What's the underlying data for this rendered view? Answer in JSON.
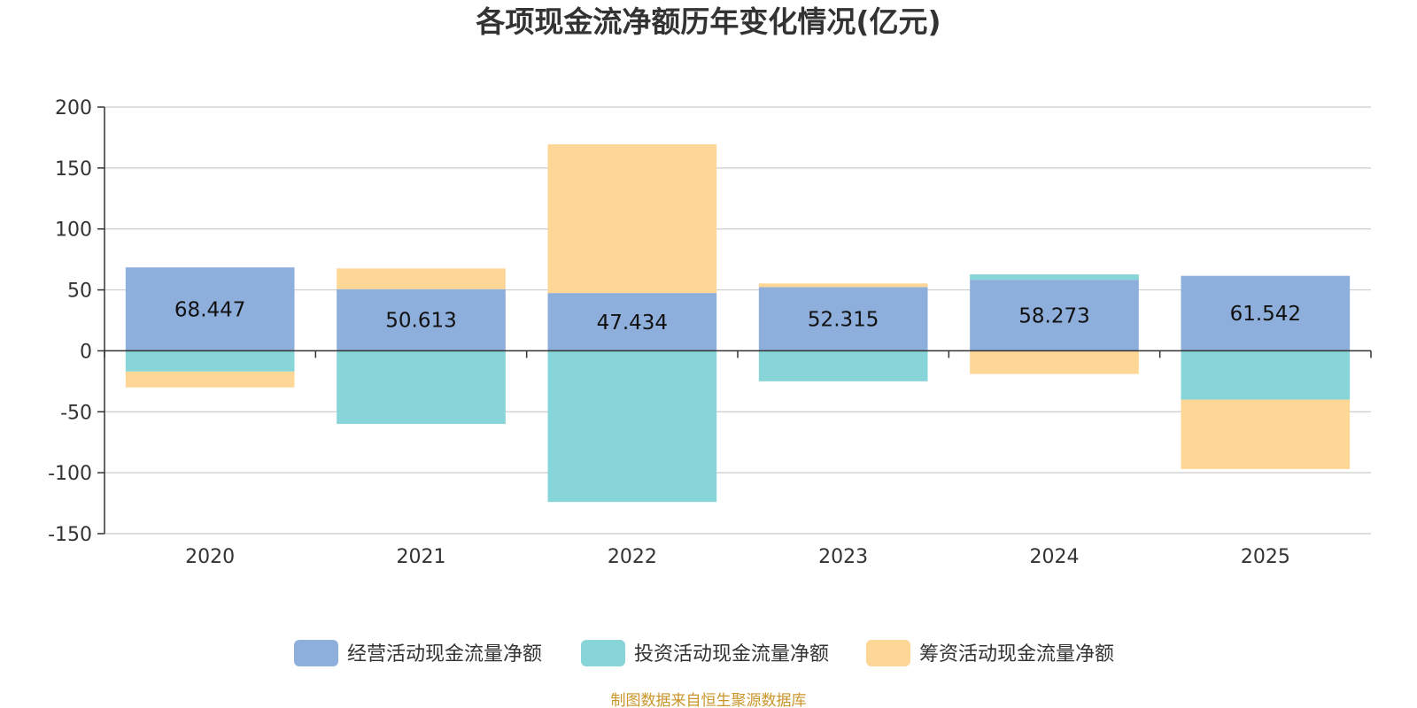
{
  "chart_data": {
    "type": "bar",
    "stacked": true,
    "title": "各项现金流净额历年变化情况(亿元)",
    "categories": [
      "2020",
      "2021",
      "2022",
      "2023",
      "2024",
      "2025"
    ],
    "ylim": [
      -150,
      200
    ],
    "yticks": [
      200,
      150,
      100,
      50,
      0,
      -50,
      -100,
      -150
    ],
    "ytick_labels": [
      "200",
      "150",
      "100",
      "50",
      "0",
      "-50",
      "-100",
      "-150"
    ],
    "grid": true,
    "legend_position": "bottom-center",
    "series": [
      {
        "name": "经营活动现金流量净额",
        "color": "#8eaedc",
        "values": [
          68.447,
          50.613,
          47.434,
          52.315,
          58.273,
          61.542
        ]
      },
      {
        "name": "投资活动现金流量净额",
        "color": "#87d5d8",
        "values": [
          -17,
          -60,
          -124,
          -25,
          4.5,
          -40
        ]
      },
      {
        "name": "筹资活动现金流量净额",
        "color": "#fed797",
        "values": [
          -13,
          17,
          122,
          3,
          -19,
          -57
        ]
      }
    ],
    "data_labels": [
      "68.447",
      "50.613",
      "47.434",
      "52.315",
      "58.273",
      "61.542"
    ]
  },
  "source": "制图数据来自恒生聚源数据库",
  "source_color": "#c9952a"
}
